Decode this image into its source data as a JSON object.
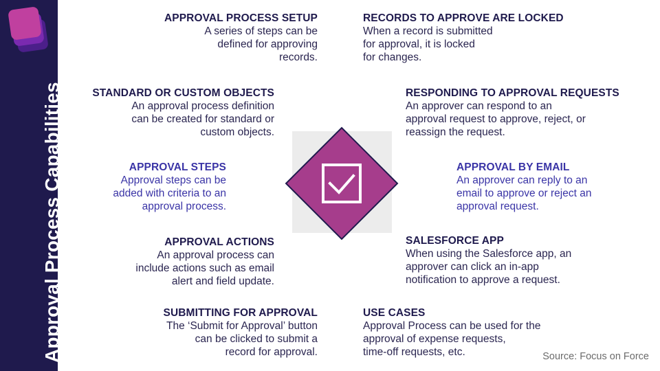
{
  "sidebar": {
    "title": "Approval Process Capabilities"
  },
  "blocks": {
    "approval_process_setup": {
      "title": "APPROVAL PROCESS SETUP",
      "lines": [
        "A series of steps can be",
        "defined for approving",
        "records."
      ]
    },
    "records_locked": {
      "title": "RECORDS TO APPROVE ARE LOCKED",
      "lines": [
        "When a record is submitted",
        "for approval, it is locked",
        "for changes."
      ]
    },
    "standard_custom": {
      "title": "STANDARD OR CUSTOM OBJECTS",
      "lines": [
        "An approval process definition",
        "can be created for standard or",
        "custom objects."
      ]
    },
    "responding": {
      "title": "RESPONDING TO APPROVAL REQUESTS",
      "lines": [
        "An approver can respond to an",
        "approval request to approve, reject, or",
        "reassign the request."
      ]
    },
    "approval_steps": {
      "title": "APPROVAL STEPS",
      "lines": [
        "Approval steps can be",
        "added with criteria to an",
        "approval process."
      ]
    },
    "approval_email": {
      "title": "APPROVAL BY EMAIL",
      "lines": [
        "An approver can reply to an",
        "email to approve or reject an",
        "approval request."
      ]
    },
    "approval_actions": {
      "title": "APPROVAL ACTIONS",
      "lines": [
        "An approval process can",
        "include actions such as email",
        "alert and field update."
      ]
    },
    "salesforce_app": {
      "title": "SALESFORCE APP",
      "lines": [
        "When using the Salesforce app, an",
        "approver can click an in-app",
        "notification to approve a request."
      ]
    },
    "submitting": {
      "title": "SUBMITTING FOR APPROVAL",
      "lines": [
        "The ‘Submit for Approval’ button",
        "can be clicked to submit a",
        "record for approval."
      ]
    },
    "use_cases": {
      "title": "USE CASES",
      "lines": [
        "Approval Process can be used for the",
        "approval of expense requests,",
        "time-off requests, etc."
      ]
    }
  },
  "source": "Source: Focus on Force",
  "colors": {
    "sidebar": "#1f1a4d",
    "diamond": "#a63d8c",
    "heading_dark": "#1f1a4d",
    "accent_purple": "#3a34a6"
  },
  "icons": {
    "center": "checkbox-icon",
    "logo": "focus-on-force-logo"
  }
}
